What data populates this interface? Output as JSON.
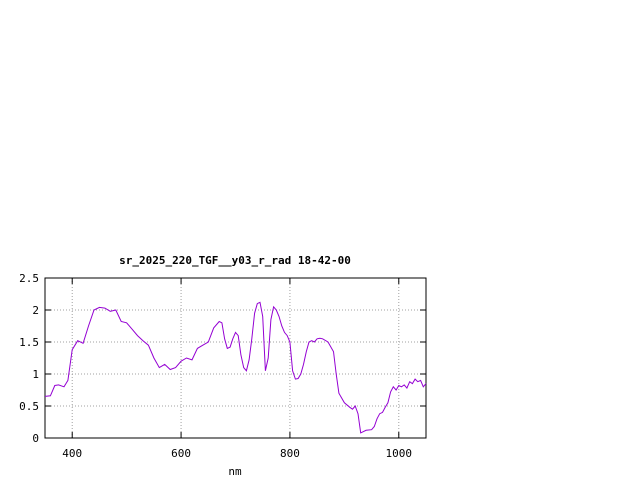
{
  "chart_data": {
    "type": "line",
    "title": "sr_2025_220_TGF__y03_r_rad 18-42-00",
    "xlabel": "nm",
    "ylabel": "",
    "xlim": [
      350,
      1050
    ],
    "ylim": [
      0,
      2.5
    ],
    "x_ticks": [
      400,
      600,
      800,
      1000
    ],
    "x_tick_labels": [
      "400",
      "600",
      "800",
      "1000"
    ],
    "y_ticks": [
      0,
      0.5,
      1,
      1.5,
      2,
      2.5
    ],
    "y_tick_labels": [
      "0",
      "0.5",
      "1",
      "1.5",
      "2",
      "2.5"
    ],
    "grid": true,
    "legend": "none",
    "line_color": "#9400d3",
    "series": [
      {
        "x": [
          350,
          360,
          368,
          375,
          385,
          392,
          400,
          410,
          420,
          430,
          440,
          450,
          460,
          470,
          480,
          490,
          500,
          510,
          520,
          530,
          540,
          550,
          560,
          570,
          580,
          590,
          600,
          610,
          620,
          630,
          640,
          650,
          660,
          670,
          675,
          680,
          685,
          690,
          695,
          700,
          705,
          710,
          715,
          720,
          725,
          730,
          735,
          740,
          745,
          750,
          755,
          760,
          765,
          770,
          775,
          780,
          785,
          790,
          795,
          800,
          805,
          810,
          815,
          820,
          825,
          830,
          835,
          840,
          845,
          850,
          855,
          860,
          870,
          880,
          885,
          890,
          900,
          910,
          915,
          920,
          925,
          930,
          940,
          950,
          955,
          960,
          965,
          970,
          975,
          980,
          985,
          990,
          995,
          1000,
          1005,
          1010,
          1015,
          1020,
          1025,
          1030,
          1035,
          1040,
          1045,
          1050
        ],
        "y": [
          0.65,
          0.66,
          0.82,
          0.83,
          0.8,
          0.9,
          1.38,
          1.52,
          1.48,
          1.75,
          2.0,
          2.04,
          2.03,
          1.98,
          2.0,
          1.82,
          1.8,
          1.7,
          1.6,
          1.52,
          1.45,
          1.25,
          1.1,
          1.15,
          1.07,
          1.1,
          1.2,
          1.25,
          1.22,
          1.4,
          1.45,
          1.5,
          1.72,
          1.82,
          1.8,
          1.55,
          1.4,
          1.42,
          1.55,
          1.65,
          1.6,
          1.3,
          1.1,
          1.05,
          1.22,
          1.55,
          1.95,
          2.1,
          2.12,
          1.9,
          1.05,
          1.25,
          1.85,
          2.05,
          2.0,
          1.9,
          1.75,
          1.65,
          1.6,
          1.5,
          1.05,
          0.92,
          0.93,
          1.0,
          1.15,
          1.35,
          1.5,
          1.52,
          1.5,
          1.55,
          1.56,
          1.55,
          1.5,
          1.35,
          1.0,
          0.7,
          0.55,
          0.48,
          0.45,
          0.5,
          0.38,
          0.08,
          0.12,
          0.13,
          0.18,
          0.3,
          0.38,
          0.4,
          0.48,
          0.55,
          0.72,
          0.8,
          0.75,
          0.82,
          0.8,
          0.83,
          0.78,
          0.88,
          0.85,
          0.92,
          0.88,
          0.9,
          0.8,
          0.85
        ]
      }
    ]
  }
}
